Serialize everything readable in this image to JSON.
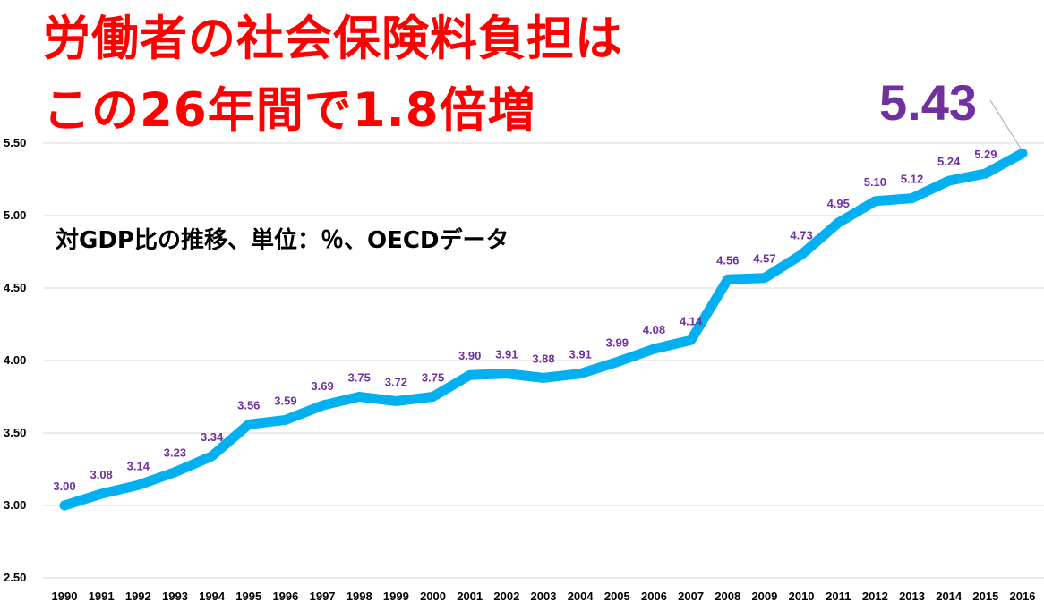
{
  "title_lines": [
    "労働者の社会保険料負担は",
    "この26年間で1.8倍増"
  ],
  "subtitle": "対GDP比の推移、単位：％、OECDデータ",
  "callout": "5.43",
  "colors": {
    "title": "#ff0000",
    "line": "#00b0f0",
    "data_label": "#7030a0",
    "callout": "#7030a0",
    "grid": "#d9d9d9"
  },
  "chart_data": {
    "type": "line",
    "x": [
      "1990",
      "1991",
      "1992",
      "1993",
      "1994",
      "1995",
      "1996",
      "1997",
      "1998",
      "1999",
      "2000",
      "2001",
      "2002",
      "2003",
      "2004",
      "2005",
      "2006",
      "2007",
      "2008",
      "2009",
      "2010",
      "2011",
      "2012",
      "2013",
      "2014",
      "2015",
      "2016"
    ],
    "series": [
      {
        "values": [
          3.0,
          3.08,
          3.14,
          3.23,
          3.34,
          3.56,
          3.59,
          3.69,
          3.75,
          3.72,
          3.75,
          3.9,
          3.91,
          3.88,
          3.91,
          3.99,
          4.08,
          4.14,
          4.56,
          4.57,
          4.73,
          4.95,
          5.1,
          5.12,
          5.24,
          5.29,
          5.43
        ]
      }
    ],
    "data_labels": [
      "3.00",
      "3.08",
      "3.14",
      "3.23",
      "3.34",
      "3.56",
      "3.59",
      "3.69",
      "3.75",
      "3.72",
      "3.75",
      "3.90",
      "3.91",
      "3.88",
      "3.91",
      "3.99",
      "4.08",
      "4.14",
      "4.56",
      "4.57",
      "4.73",
      "4.95",
      "5.10",
      "5.12",
      "5.24",
      "5.29",
      ""
    ],
    "yticks": [
      "2.50",
      "3.00",
      "3.50",
      "4.00",
      "4.50",
      "5.00",
      "5.50"
    ],
    "ylim": [
      2.5,
      5.5
    ],
    "grid": true,
    "legend": "none"
  }
}
